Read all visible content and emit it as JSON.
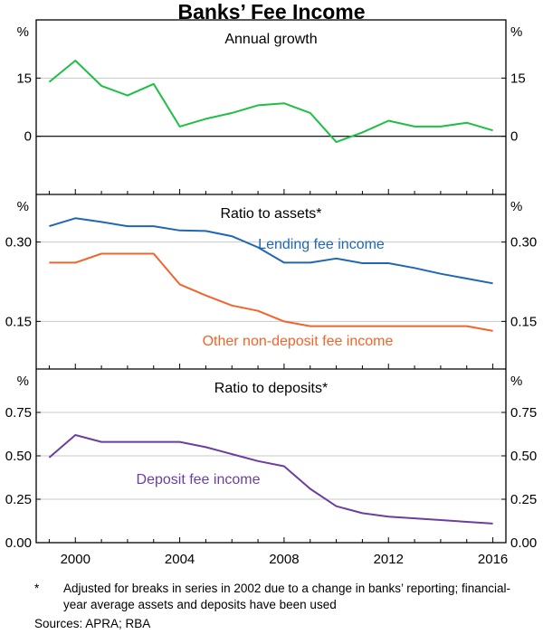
{
  "title": "Banks’ Fee Income",
  "footnote": {
    "mark": "*",
    "text": "Adjusted for breaks in series in 2002 due to a change in banks’ reporting; financial-year average assets and deposits have been used"
  },
  "sources": "Sources:   APRA; RBA",
  "colors": {
    "growth": "#1fbf44",
    "lending": "#1f67b4",
    "other": "#f2642b",
    "deposit": "#6a3fa0",
    "grid": "#c8c8c8",
    "axis": "#000000"
  },
  "chart_data": [
    {
      "type": "line",
      "panel": "growth",
      "title": "Annual growth",
      "unit": "%",
      "ylim": [
        -15,
        30
      ],
      "yticks": [
        0,
        15
      ],
      "yticklabels": [
        "0",
        "15"
      ],
      "xlim": [
        1998.5,
        2016.5
      ],
      "series": [
        {
          "name": "Annual growth",
          "color_key": "growth",
          "x": [
            1999,
            2000,
            2001,
            2002,
            2003,
            2004,
            2005,
            2006,
            2007,
            2008,
            2009,
            2010,
            2011,
            2012,
            2013,
            2014,
            2015,
            2016
          ],
          "values": [
            14,
            19.5,
            13,
            10.5,
            13.5,
            2.5,
            4.5,
            6,
            8,
            8.5,
            6,
            -1.5,
            1,
            4,
            2.5,
            2.5,
            3.5,
            1.5
          ]
        }
      ]
    },
    {
      "type": "line",
      "panel": "assets",
      "title": "Ratio to assets*",
      "unit": "%",
      "ylim": [
        0.06,
        0.39
      ],
      "yticks": [
        0.15,
        0.3
      ],
      "yticklabels": [
        "0.15",
        "0.30"
      ],
      "xlim": [
        1998.5,
        2016.5
      ],
      "series": [
        {
          "name": "Lending fee income",
          "color_key": "lending",
          "x": [
            1999,
            2000,
            2001,
            2002,
            2003,
            2004,
            2005,
            2006,
            2007,
            2008,
            2009,
            2010,
            2011,
            2012,
            2013,
            2014,
            2015,
            2016
          ],
          "values": [
            0.33,
            0.345,
            0.338,
            0.33,
            0.33,
            0.322,
            0.321,
            0.311,
            0.29,
            0.261,
            0.261,
            0.269,
            0.26,
            0.26,
            0.251,
            0.24,
            0.231,
            0.222
          ]
        },
        {
          "name": "Other non-deposit fee income",
          "color_key": "other",
          "x": [
            1999,
            2000,
            2001,
            2002,
            2003,
            2004,
            2005,
            2006,
            2007,
            2008,
            2009,
            2010,
            2011,
            2012,
            2013,
            2014,
            2015,
            2016
          ],
          "values": [
            0.261,
            0.261,
            0.278,
            0.278,
            0.278,
            0.22,
            0.199,
            0.18,
            0.17,
            0.15,
            0.141,
            0.141,
            0.141,
            0.141,
            0.141,
            0.141,
            0.141,
            0.132
          ]
        }
      ]
    },
    {
      "type": "line",
      "panel": "deposits",
      "title": "Ratio to deposits*",
      "unit": "%",
      "ylim": [
        0,
        1
      ],
      "yticks": [
        0,
        0.25,
        0.5,
        0.75
      ],
      "yticklabels": [
        "0.00",
        "0.25",
        "0.50",
        "0.75"
      ],
      "xlim": [
        1998.5,
        2016.5
      ],
      "xticks": [
        2000,
        2004,
        2008,
        2012,
        2016
      ],
      "xticklabels": [
        "2000",
        "2004",
        "2008",
        "2012",
        "2016"
      ],
      "series": [
        {
          "name": "Deposit fee income",
          "color_key": "deposit",
          "x": [
            1999,
            2000,
            2001,
            2002,
            2003,
            2004,
            2005,
            2006,
            2007,
            2008,
            2009,
            2010,
            2011,
            2012,
            2013,
            2014,
            2015,
            2016
          ],
          "values": [
            0.49,
            0.62,
            0.58,
            0.58,
            0.58,
            0.58,
            0.55,
            0.51,
            0.47,
            0.44,
            0.31,
            0.21,
            0.17,
            0.15,
            0.14,
            0.13,
            0.12,
            0.11
          ]
        }
      ]
    }
  ]
}
